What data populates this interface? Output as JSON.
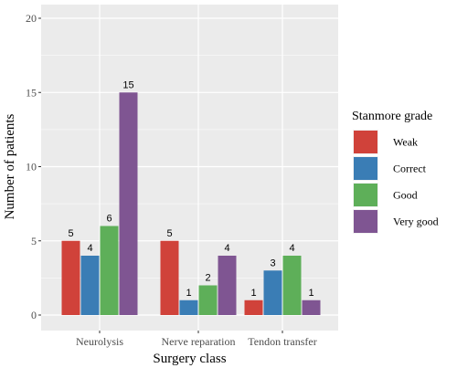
{
  "chart_data": {
    "type": "bar",
    "categories": [
      "Neurolysis",
      "Nerve reparation",
      "Tendon transfer"
    ],
    "series": [
      {
        "name": "Weak",
        "values": [
          5,
          5,
          1
        ],
        "color": "#D0423A"
      },
      {
        "name": "Correct",
        "values": [
          4,
          1,
          3
        ],
        "color": "#3A7DB5"
      },
      {
        "name": "Good",
        "values": [
          6,
          2,
          4
        ],
        "color": "#5EAF59"
      },
      {
        "name": "Very good",
        "values": [
          15,
          4,
          1
        ],
        "color": "#7F5592"
      }
    ],
    "xlabel": "Surgery class",
    "ylabel": "Number of patients",
    "ylim": [
      0,
      20
    ],
    "yticks": [
      0,
      5,
      10,
      15,
      20
    ],
    "grid": true,
    "legend": {
      "title": "Stanmore grade",
      "placement": "right"
    },
    "panel_background": "#EBEBEB"
  }
}
